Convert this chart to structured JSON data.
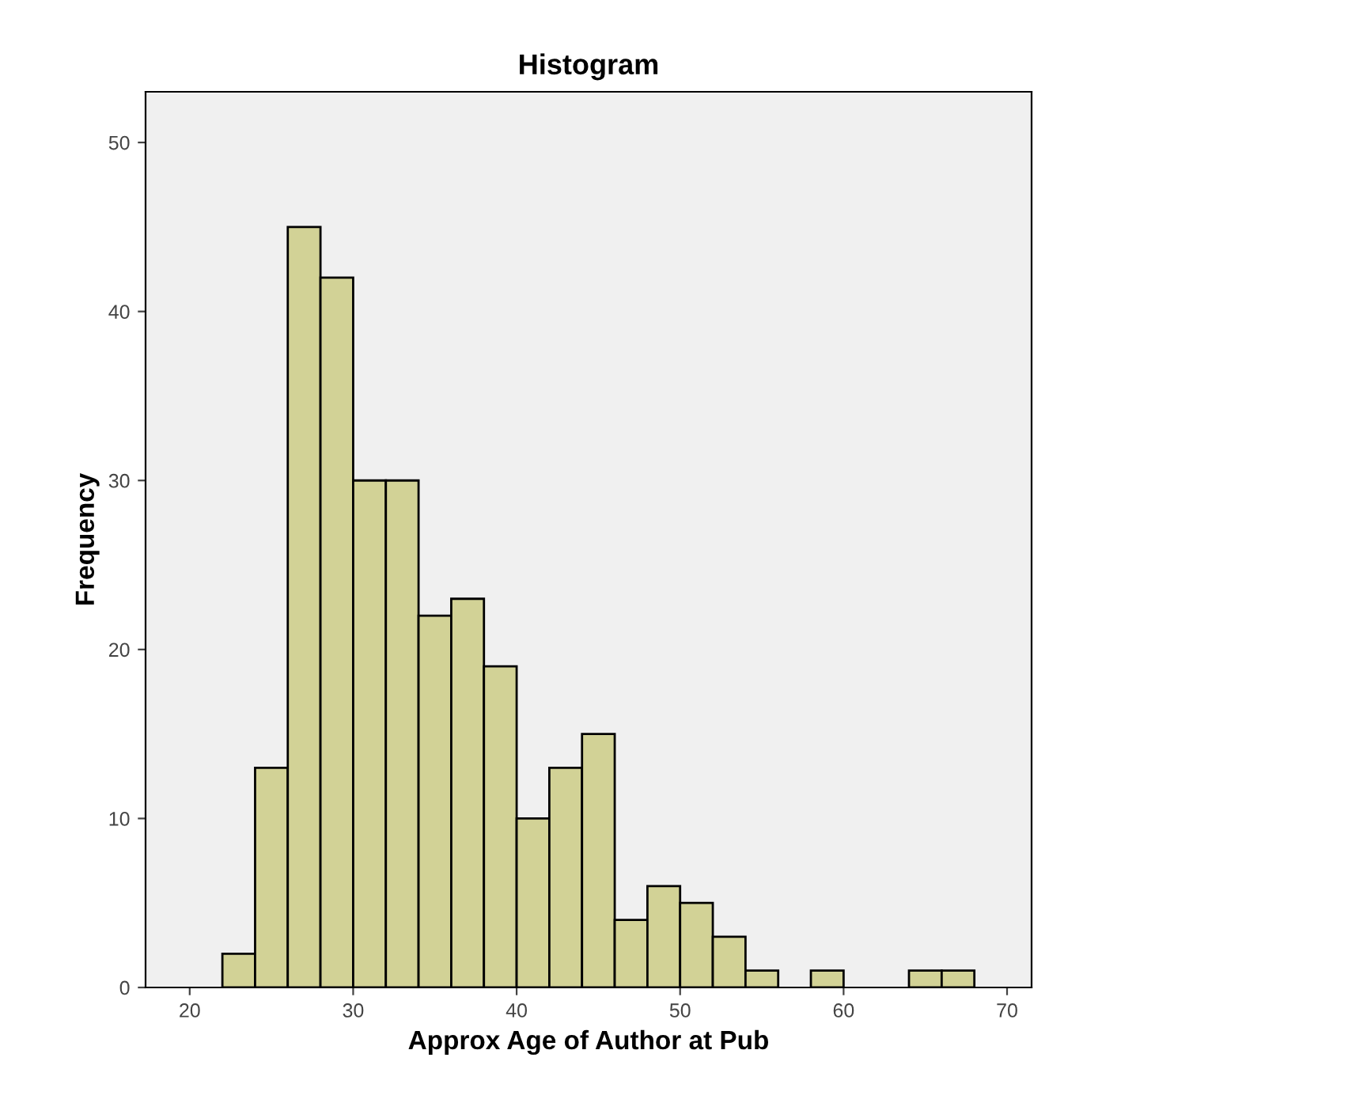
{
  "chart_data": {
    "type": "histogram",
    "title": "Histogram",
    "xlabel": "Approx Age of Author at Pub",
    "ylabel": "Frequency",
    "bins": [
      22,
      24,
      26,
      28,
      30,
      32,
      34,
      36,
      38,
      40,
      42,
      44,
      46,
      48,
      50,
      52,
      54,
      56,
      58,
      60,
      62,
      64,
      66,
      68
    ],
    "values": [
      2,
      13,
      45,
      42,
      30,
      30,
      22,
      23,
      19,
      10,
      13,
      15,
      4,
      6,
      5,
      3,
      1,
      0,
      1,
      0,
      0,
      1,
      1
    ],
    "color": "#d2d296",
    "xlim": [
      17.3,
      71.5
    ],
    "xticks": [
      20,
      30,
      40,
      50,
      60,
      70
    ],
    "ylim": [
      0,
      53
    ],
    "yticks": [
      0,
      10,
      20,
      30,
      40,
      50
    ],
    "grid": false
  }
}
